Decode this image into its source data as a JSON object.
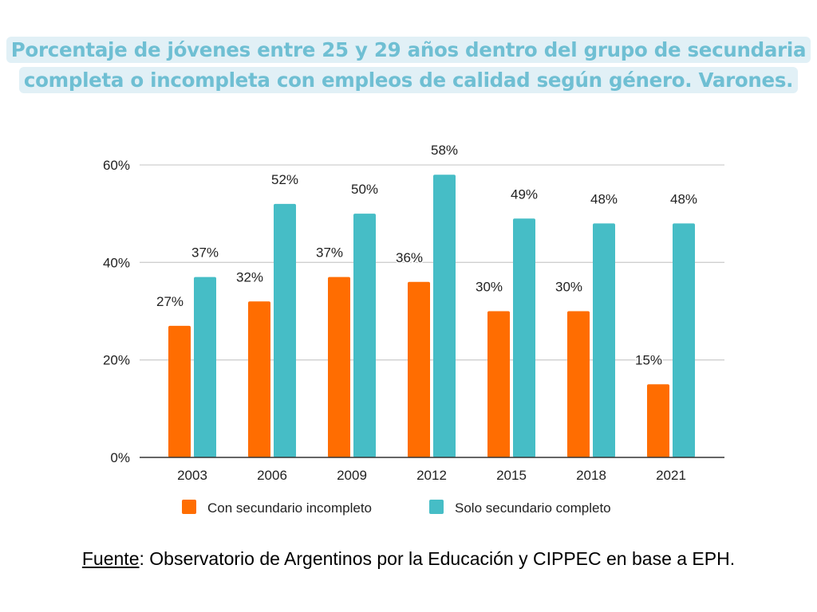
{
  "chart_data": {
    "type": "bar",
    "title": "Porcentaje de jóvenes entre 25 y 29 años dentro del grupo de secundaria completa o incompleta con empleos de calidad según género. Varones.",
    "categories": [
      "2003",
      "2006",
      "2009",
      "2012",
      "2015",
      "2018",
      "2021"
    ],
    "series": [
      {
        "name": "Con secundario incompleto",
        "color": "#ff6d01",
        "values": [
          27,
          32,
          37,
          36,
          30,
          30,
          15
        ]
      },
      {
        "name": "Solo secundario completo",
        "color": "#46bdc6",
        "values": [
          37,
          52,
          50,
          58,
          49,
          48,
          48
        ]
      }
    ],
    "data_labels": [
      [
        "27%",
        "32%",
        "37%",
        "36%",
        "30%",
        "30%",
        "15%"
      ],
      [
        "37%",
        "52%",
        "50%",
        "58%",
        "49%",
        "48%",
        "48%"
      ]
    ],
    "ylim": [
      0,
      60
    ],
    "yticks": [
      0,
      20,
      40,
      60
    ],
    "ytick_labels": [
      "0%",
      "20%",
      "40%",
      "60%"
    ],
    "xlabel": "",
    "ylabel": "",
    "grid": true,
    "legend": "bottom"
  },
  "source": {
    "label": "Fuente",
    "text": ": Observatorio de Argentinos por la Educación y CIPPEC en base a EPH."
  }
}
